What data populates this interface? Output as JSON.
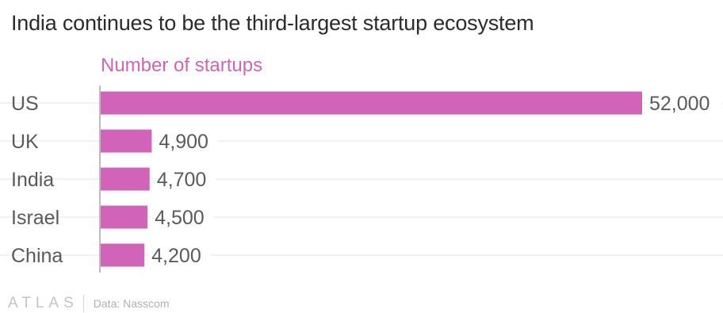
{
  "title": "India continues to be the third-largest startup ecosystem",
  "chart_data": {
    "type": "bar",
    "orientation": "horizontal",
    "title": "India continues to be the third-largest startup ecosystem",
    "series": [
      {
        "name": "Number of startups",
        "values": [
          52000,
          4900,
          4700,
          4500,
          4200
        ]
      }
    ],
    "categories": [
      "US",
      "UK",
      "India",
      "Israel",
      "China"
    ],
    "value_labels": [
      "52,000",
      "4,900",
      "4,700",
      "4,500",
      "4,200"
    ],
    "xlim": [
      0,
      52000
    ],
    "grid": true,
    "bar_color": "#d163b8"
  },
  "footer": {
    "logo": "ATLAS",
    "source": "Data: Nasscom"
  }
}
